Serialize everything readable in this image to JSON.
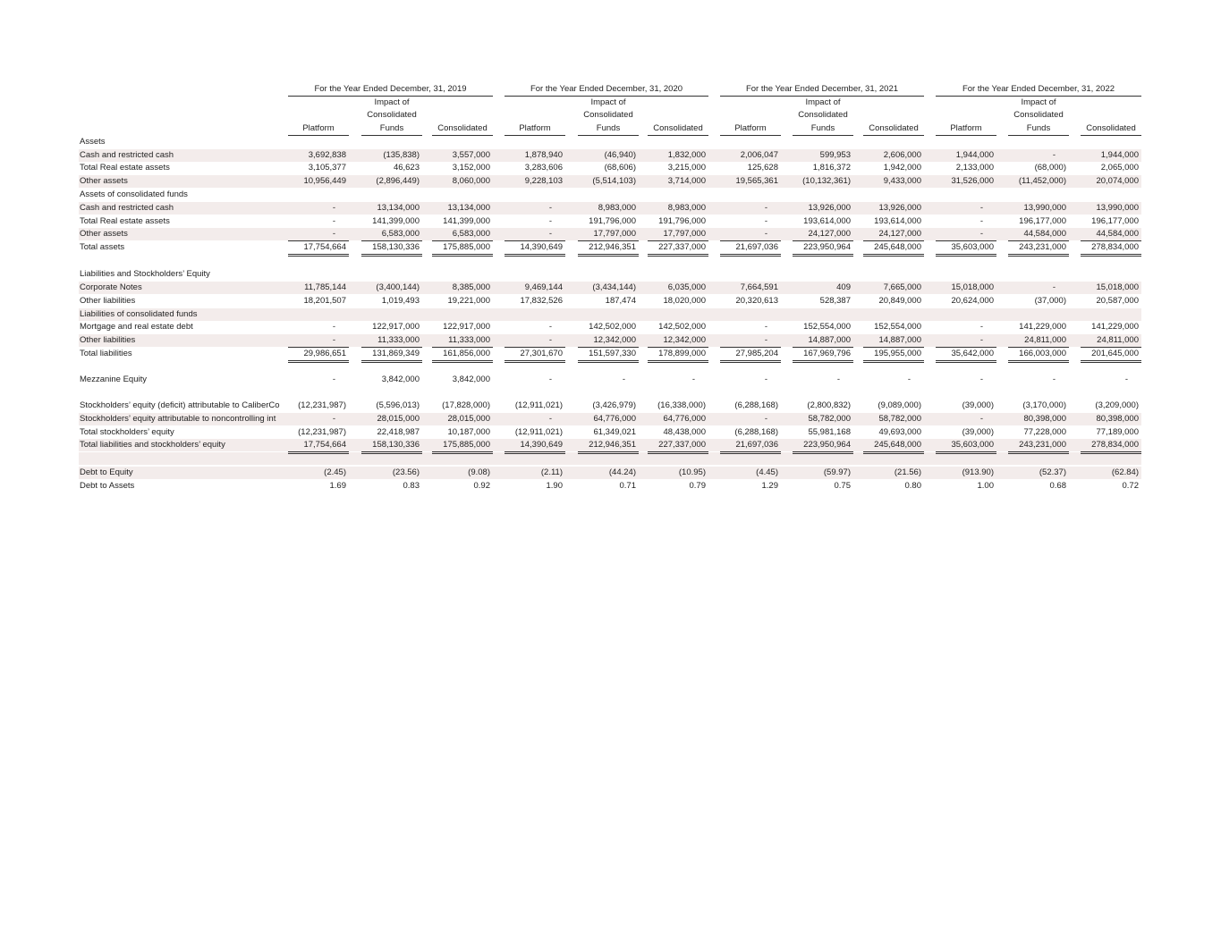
{
  "table": {
    "groups": [
      "For the Year Ended December, 31, 2019",
      "For the Year Ended December, 31, 2020",
      "For the Year Ended December, 31, 2021",
      "For the Year Ended December, 31, 2022"
    ],
    "columns": [
      "Platform",
      "Impact of Consolidated Funds",
      "Consolidated"
    ],
    "rows": [
      {
        "label": "Assets"
      },
      {
        "label": "Cash and restricted cash",
        "values": [
          "3,692,838",
          "(135,838)",
          "3,557,000",
          "1,878,940",
          "(46,940)",
          "1,832,000",
          "2,006,047",
          "599,953",
          "2,606,000",
          "1,944,000",
          "-",
          "1,944,000"
        ]
      },
      {
        "label": "Total Real estate assets",
        "values": [
          "3,105,377",
          "46,623",
          "3,152,000",
          "3,283,606",
          "(68,606)",
          "3,215,000",
          "125,628",
          "1,816,372",
          "1,942,000",
          "2,133,000",
          "(68,000)",
          "2,065,000"
        ]
      },
      {
        "label": "Other assets",
        "values": [
          "10,956,449",
          "(2,896,449)",
          "8,060,000",
          "9,228,103",
          "(5,514,103)",
          "3,714,000",
          "19,565,361",
          "(10,132,361)",
          "9,433,000",
          "31,526,000",
          "(11,452,000)",
          "20,074,000"
        ]
      },
      {
        "label": "Assets of consolidated funds"
      },
      {
        "label": "Cash and restricted cash",
        "values": [
          "-",
          "13,134,000",
          "13,134,000",
          "-",
          "8,983,000",
          "8,983,000",
          "-",
          "13,926,000",
          "13,926,000",
          "-",
          "13,990,000",
          "13,990,000"
        ]
      },
      {
        "label": "Total Real estate assets",
        "values": [
          "-",
          "141,399,000",
          "141,399,000",
          "-",
          "191,796,000",
          "191,796,000",
          "-",
          "193,614,000",
          "193,614,000",
          "-",
          "196,177,000",
          "196,177,000"
        ]
      },
      {
        "label": "Other assets",
        "values": [
          "-",
          "6,583,000",
          "6,583,000",
          "-",
          "17,797,000",
          "17,797,000",
          "-",
          "24,127,000",
          "24,127,000",
          "-",
          "44,584,000",
          "44,584,000"
        ]
      },
      {
        "label": "Total assets",
        "values": [
          "17,754,664",
          "158,130,336",
          "175,885,000",
          "14,390,649",
          "212,946,351",
          "227,337,000",
          "21,697,036",
          "223,950,964",
          "245,648,000",
          "35,603,000",
          "243,231,000",
          "278,834,000"
        ]
      },
      {
        "label": "Liabilities and Stockholders’ Equity"
      },
      {
        "label": "Corporate Notes",
        "values": [
          "11,785,144",
          "(3,400,144)",
          "8,385,000",
          "9,469,144",
          "(3,434,144)",
          "6,035,000",
          "7,664,591",
          "409",
          "7,665,000",
          "15,018,000",
          "-",
          "15,018,000"
        ]
      },
      {
        "label": "Other liabilities",
        "values": [
          "18,201,507",
          "1,019,493",
          "19,221,000",
          "17,832,526",
          "187,474",
          "18,020,000",
          "20,320,613",
          "528,387",
          "20,849,000",
          "20,624,000",
          "(37,000)",
          "20,587,000"
        ]
      },
      {
        "label": "Liabilities of consolidated funds"
      },
      {
        "label": "Mortgage and real estate debt",
        "values": [
          "-",
          "122,917,000",
          "122,917,000",
          "-",
          "142,502,000",
          "142,502,000",
          "-",
          "152,554,000",
          "152,554,000",
          "-",
          "141,229,000",
          "141,229,000"
        ]
      },
      {
        "label": "Other liabilities",
        "values": [
          "-",
          "11,333,000",
          "11,333,000",
          "-",
          "12,342,000",
          "12,342,000",
          "-",
          "14,887,000",
          "14,887,000",
          "-",
          "24,811,000",
          "24,811,000"
        ]
      },
      {
        "label": "Total liabilities",
        "values": [
          "29,986,651",
          "131,869,349",
          "161,856,000",
          "27,301,670",
          "151,597,330",
          "178,899,000",
          "27,985,204",
          "167,969,796",
          "195,955,000",
          "35,642,000",
          "166,003,000",
          "201,645,000"
        ]
      },
      {
        "label": "Mezzanine Equity",
        "values": [
          "-",
          "3,842,000",
          "3,842,000",
          "-",
          "-",
          "-",
          "-",
          "-",
          "-",
          "-",
          "-",
          "-"
        ]
      },
      {
        "label": "Stockholders’ equity (deficit) attributable to CaliberCo",
        "values": [
          "(12,231,987)",
          "(5,596,013)",
          "(17,828,000)",
          "(12,911,021)",
          "(3,426,979)",
          "(16,338,000)",
          "(6,288,168)",
          "(2,800,832)",
          "(9,089,000)",
          "(39,000)",
          "(3,170,000)",
          "(3,209,000)"
        ]
      },
      {
        "label": "Stockholders’ equity attributable to noncontrolling int",
        "values": [
          "-",
          "28,015,000",
          "28,015,000",
          "-",
          "64,776,000",
          "64,776,000",
          "-",
          "58,782,000",
          "58,782,000",
          "-",
          "80,398,000",
          "80,398,000"
        ]
      },
      {
        "label": "Total stockholders’ equity",
        "values": [
          "(12,231,987)",
          "22,418,987",
          "10,187,000",
          "(12,911,021)",
          "61,349,021",
          "48,438,000",
          "(6,288,168)",
          "55,981,168",
          "49,693,000",
          "(39,000)",
          "77,228,000",
          "77,189,000"
        ]
      },
      {
        "label": "Total liabilities and stockholders’ equity",
        "values": [
          "17,754,664",
          "158,130,336",
          "175,885,000",
          "14,390,649",
          "212,946,351",
          "227,337,000",
          "21,697,036",
          "223,950,964",
          "245,648,000",
          "35,603,000",
          "243,231,000",
          "278,834,000"
        ]
      },
      {
        "label": "Debt to Equity",
        "values": [
          "(2.45)",
          "(23.56)",
          "(9.08)",
          "(2.11)",
          "(44.24)",
          "(10.95)",
          "(4.45)",
          "(59.97)",
          "(21.56)",
          "(913.90)",
          "(52.37)",
          "(62.84)"
        ]
      },
      {
        "label": "Debt to Assets",
        "values": [
          "1.69",
          "0.83",
          "0.92",
          "1.90",
          "0.71",
          "0.79",
          "1.29",
          "0.75",
          "0.80",
          "1.00",
          "0.68",
          "0.72"
        ]
      }
    ]
  }
}
